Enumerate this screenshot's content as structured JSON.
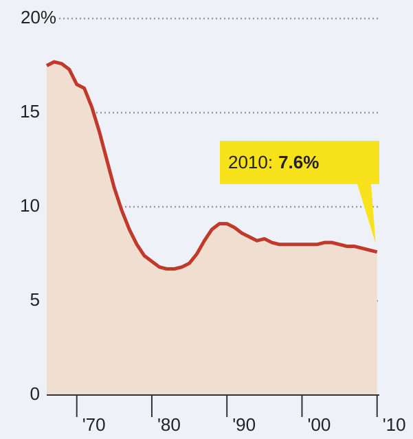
{
  "chart_data": {
    "type": "area",
    "x": [
      1966,
      1967,
      1968,
      1969,
      1970,
      1971,
      1972,
      1973,
      1974,
      1975,
      1976,
      1977,
      1978,
      1979,
      1980,
      1981,
      1982,
      1983,
      1984,
      1985,
      1986,
      1987,
      1988,
      1989,
      1990,
      1991,
      1992,
      1993,
      1994,
      1995,
      1996,
      1997,
      1998,
      1999,
      2000,
      2001,
      2002,
      2003,
      2004,
      2005,
      2006,
      2007,
      2008,
      2009,
      2010
    ],
    "values": [
      17.5,
      17.7,
      17.6,
      17.3,
      16.5,
      16.3,
      15.3,
      14.0,
      12.5,
      11.0,
      9.8,
      8.8,
      8.0,
      7.4,
      7.1,
      6.8,
      6.7,
      6.7,
      6.8,
      7.0,
      7.5,
      8.2,
      8.8,
      9.1,
      9.1,
      8.9,
      8.6,
      8.4,
      8.2,
      8.3,
      8.1,
      8.0,
      8.0,
      8.0,
      8.0,
      8.0,
      8.0,
      8.1,
      8.1,
      8.0,
      7.9,
      7.9,
      7.8,
      7.7,
      7.6
    ],
    "color": "#c0392b",
    "fill": "#f0dfd0",
    "xlim": [
      1966,
      2010.3
    ],
    "xticks": [
      {
        "value": 1970,
        "label": "'70"
      },
      {
        "value": 1980,
        "label": "'80"
      },
      {
        "value": 1990,
        "label": "'90"
      },
      {
        "value": 2000,
        "label": "'00"
      },
      {
        "value": 2010,
        "label": "'10"
      }
    ],
    "ylim": [
      0,
      20
    ],
    "yticks": [
      0,
      5,
      10,
      15,
      {
        "value": 20,
        "label": "20%"
      }
    ],
    "grid": true,
    "annotation": {
      "label": "2010:",
      "value_label": "7.6%"
    }
  }
}
